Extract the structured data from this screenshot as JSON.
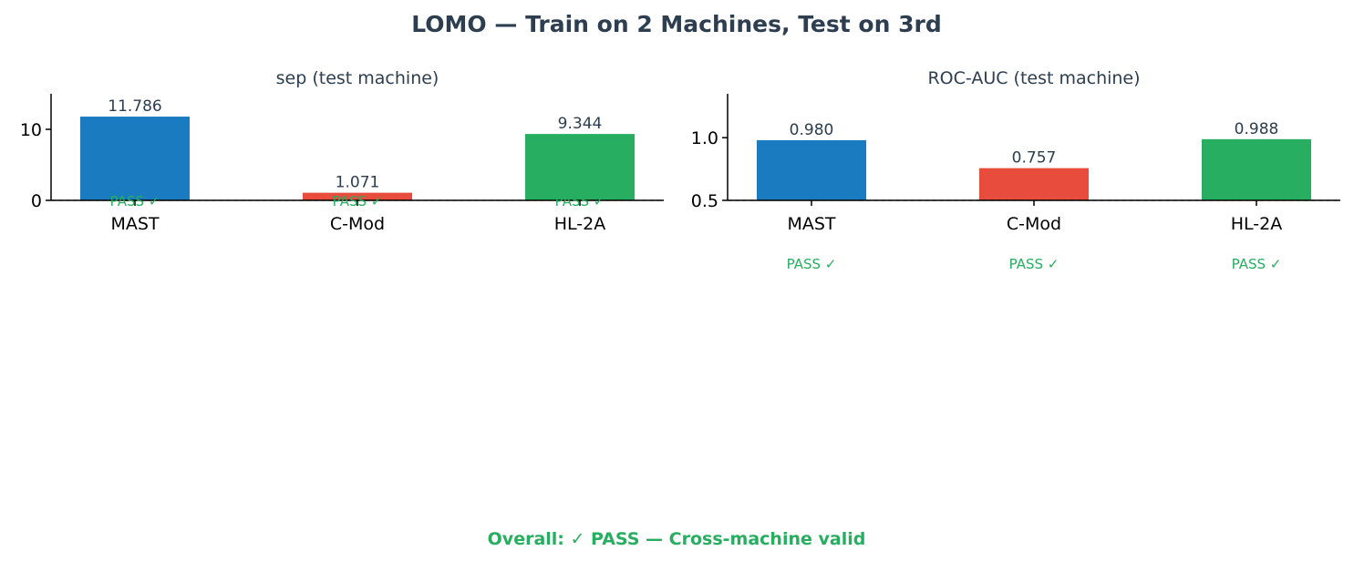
{
  "title": "LOMO — Train on 2 Machines, Test on 3rd",
  "footer": "Overall: ✓ PASS — Cross-machine valid",
  "colors": {
    "text": "#2c3e50",
    "pass": "#27ae60",
    "MAST": "#1a7bc1",
    "C-Mod": "#e74c3c",
    "HL-2A": "#27ae60"
  },
  "chart_data": [
    {
      "type": "bar",
      "title": "sep (test machine)",
      "categories": [
        "MAST",
        "C-Mod",
        "HL-2A"
      ],
      "values": [
        11.786,
        1.071,
        9.344
      ],
      "value_labels": [
        "11.786",
        "1.071",
        "9.344"
      ],
      "status_labels": [
        "PASS ✓",
        "PASS ✓",
        "PASS ✓"
      ],
      "ylim": [
        0,
        15
      ],
      "yticks": [
        0,
        10
      ],
      "ytick_labels": [
        "0",
        "10"
      ],
      "threshold": 0,
      "grid": false
    },
    {
      "type": "bar",
      "title": "ROC-AUC (test machine)",
      "categories": [
        "MAST",
        "C-Mod",
        "HL-2A"
      ],
      "values": [
        0.98,
        0.757,
        0.988
      ],
      "value_labels": [
        "0.980",
        "0.757",
        "0.988"
      ],
      "status_labels": [
        "PASS ✓",
        "PASS ✓",
        "PASS ✓"
      ],
      "ylim": [
        0.5,
        1.35
      ],
      "yticks": [
        0.5,
        1.0
      ],
      "ytick_labels": [
        "0.5",
        "1.0"
      ],
      "threshold": 0.5,
      "grid": false
    }
  ]
}
